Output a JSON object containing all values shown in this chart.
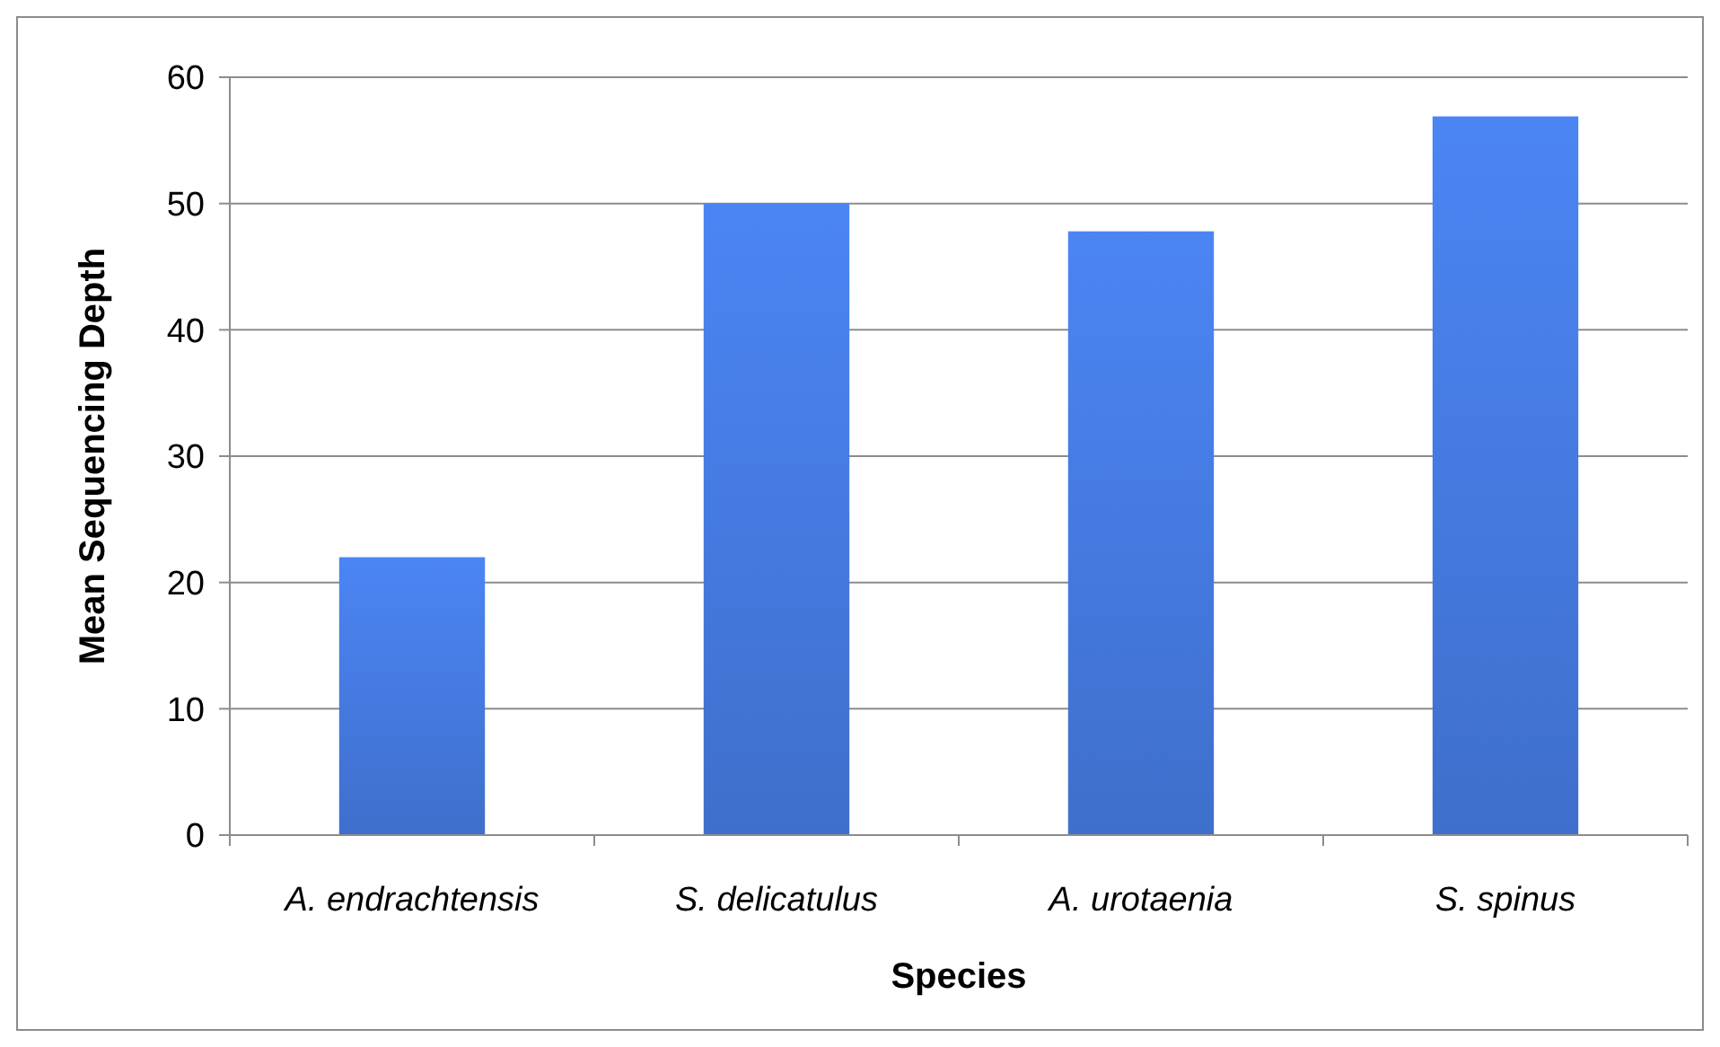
{
  "chart_data": {
    "type": "bar",
    "xlabel": "Species",
    "ylabel": "Mean Sequencing Depth",
    "categories": [
      "A. endrachtensis",
      "S. delicatulus",
      "A. urotaenia",
      "S. spinus"
    ],
    "values": [
      22,
      50,
      47.8,
      56.9
    ],
    "color": "#3f6fcc",
    "ylim": [
      0,
      60
    ],
    "yticks": [
      0,
      10,
      20,
      30,
      40,
      50,
      60
    ],
    "grid": "y"
  }
}
